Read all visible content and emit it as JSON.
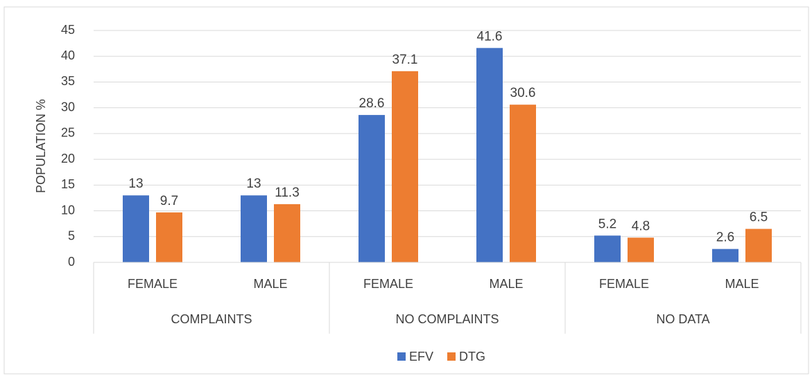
{
  "chart_data": {
    "type": "bar",
    "y_label": "POPULATION %",
    "groups": [
      "COMPLAINTS",
      "NO COMPLAINTS",
      "NO DATA"
    ],
    "categories": [
      "FEMALE",
      "MALE",
      "FEMALE",
      "MALE",
      "FEMALE",
      "MALE"
    ],
    "series": [
      {
        "name": "EFV",
        "color": "#4472c4",
        "values": [
          13,
          13,
          28.6,
          41.6,
          5.2,
          2.6
        ]
      },
      {
        "name": "DTG",
        "color": "#ed7d31",
        "values": [
          9.7,
          11.3,
          37.1,
          30.6,
          4.8,
          6.5
        ]
      }
    ],
    "ylim": [
      0,
      45
    ],
    "yticks": [
      0,
      5,
      10,
      15,
      20,
      25,
      30,
      35,
      40,
      45
    ],
    "grid": true,
    "legend": "bottom"
  }
}
